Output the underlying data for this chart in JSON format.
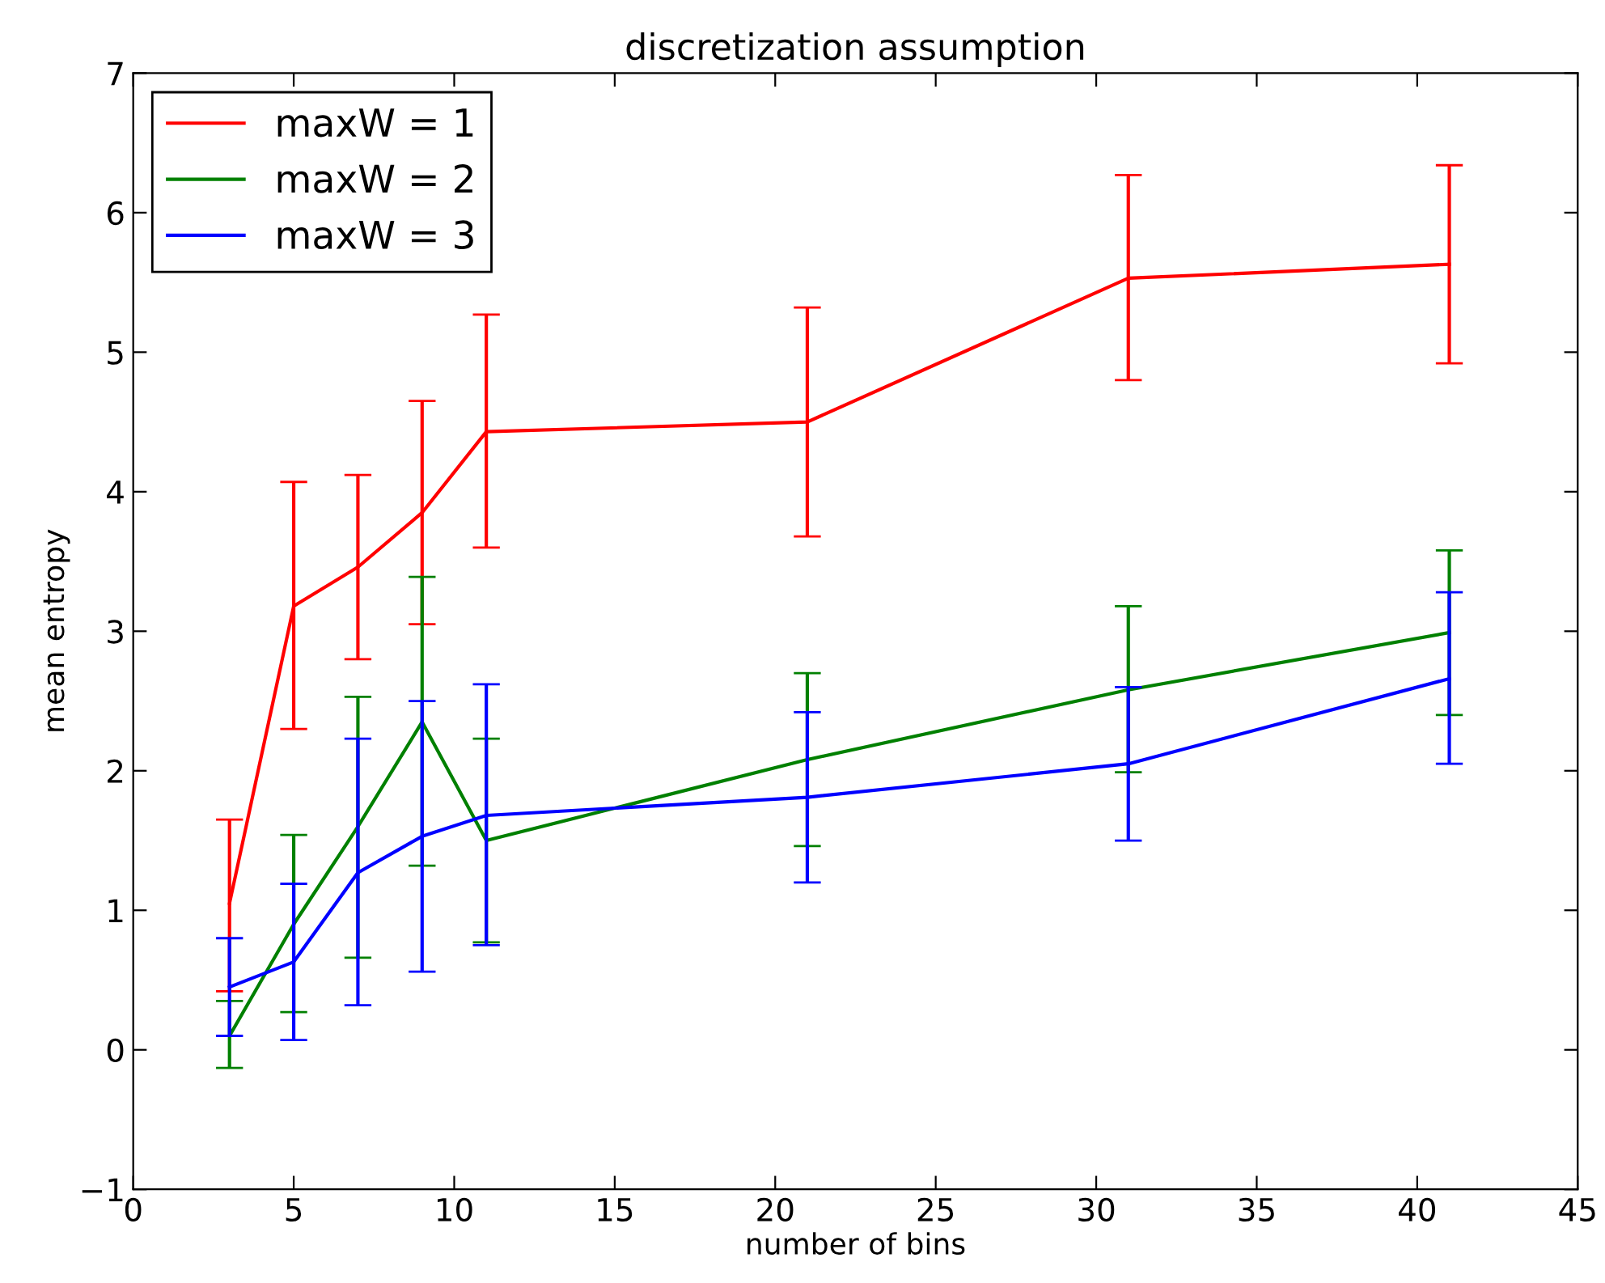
{
  "chart_data": {
    "type": "line",
    "title": "discretization assumption",
    "xlabel": "number of bins",
    "ylabel": "mean entropy",
    "x": [
      3,
      5,
      7,
      9,
      11,
      21,
      31,
      41
    ],
    "series": [
      {
        "name": "maxW = 1",
        "color": "#ff0000",
        "values": [
          1.05,
          3.18,
          3.46,
          3.85,
          4.43,
          4.5,
          5.53,
          5.63
        ],
        "errors": [
          [
            0.42,
            1.65
          ],
          [
            2.3,
            4.07
          ],
          [
            2.8,
            4.12
          ],
          [
            3.05,
            4.65
          ],
          [
            3.6,
            5.27
          ],
          [
            3.68,
            5.32
          ],
          [
            4.8,
            6.27
          ],
          [
            4.92,
            6.34
          ]
        ]
      },
      {
        "name": "maxW = 2",
        "color": "#008000",
        "values": [
          0.1,
          0.9,
          1.6,
          2.35,
          1.5,
          2.08,
          2.58,
          2.99
        ],
        "errors": [
          [
            -0.13,
            0.35
          ],
          [
            0.27,
            1.54
          ],
          [
            0.66,
            2.53
          ],
          [
            1.32,
            3.39
          ],
          [
            0.77,
            2.23
          ],
          [
            1.46,
            2.7
          ],
          [
            1.99,
            3.18
          ],
          [
            2.4,
            3.58
          ]
        ]
      },
      {
        "name": "maxW = 3",
        "color": "#0000ff",
        "values": [
          0.45,
          0.63,
          1.27,
          1.53,
          1.68,
          1.81,
          2.05,
          2.66
        ],
        "errors": [
          [
            0.1,
            0.8
          ],
          [
            0.07,
            1.19
          ],
          [
            0.32,
            2.23
          ],
          [
            0.56,
            2.5
          ],
          [
            0.75,
            2.62
          ],
          [
            1.2,
            2.42
          ],
          [
            1.5,
            2.6
          ],
          [
            2.05,
            3.28
          ]
        ]
      }
    ],
    "xlim": [
      0,
      45
    ],
    "xticks": [
      0,
      5,
      10,
      15,
      20,
      25,
      30,
      35,
      40,
      45
    ],
    "ylim": [
      -1,
      7
    ],
    "yticks": [
      {
        "value": -1,
        "label": "−1"
      },
      0,
      1,
      2,
      3,
      4,
      5,
      6,
      7
    ],
    "legend": "top left",
    "grid": false,
    "marker": "none",
    "line_style": "solid"
  }
}
